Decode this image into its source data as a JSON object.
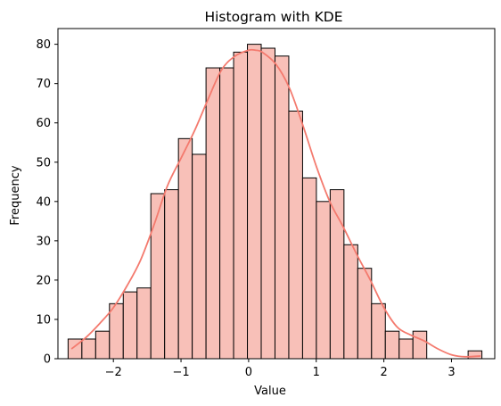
{
  "chart_data": {
    "type": "bar",
    "title": "Histogram with KDE",
    "xlabel": "Value",
    "ylabel": "Frequency",
    "xlim": [
      -2.82,
      3.64
    ],
    "ylim": [
      0,
      84
    ],
    "x_ticks": [
      -2,
      -1,
      0,
      1,
      2,
      3
    ],
    "y_ticks": [
      0,
      10,
      20,
      30,
      40,
      50,
      60,
      70,
      80
    ],
    "grid": false,
    "bin_start": -2.67,
    "bin_width": 0.204,
    "values": [
      5,
      5,
      7,
      14,
      17,
      18,
      42,
      43,
      56,
      52,
      74,
      74,
      78,
      80,
      79,
      77,
      63,
      46,
      40,
      43,
      29,
      23,
      14,
      7,
      5,
      7,
      0,
      0,
      0,
      2
    ],
    "bar_fill": "#f8c0b8",
    "bar_edge": "#000000",
    "kde_color": "#f47a6e",
    "kde": {
      "x": [
        -2.62,
        -2.4,
        -2.2,
        -2.0,
        -1.8,
        -1.6,
        -1.4,
        -1.2,
        -1.0,
        -0.8,
        -0.6,
        -0.4,
        -0.2,
        0.0,
        0.1,
        0.2,
        0.4,
        0.6,
        0.8,
        1.0,
        1.2,
        1.4,
        1.6,
        1.8,
        2.0,
        2.2,
        2.4,
        2.6,
        2.8,
        3.0,
        3.2,
        3.43
      ],
      "y": [
        2.5,
        5.5,
        9,
        13,
        18.5,
        25,
        34,
        44,
        51,
        58,
        66,
        73.5,
        77,
        78.5,
        78.5,
        78,
        75,
        69,
        59.5,
        49,
        40,
        33.5,
        26.5,
        20,
        13,
        8,
        6,
        4.5,
        2.5,
        1,
        0.5,
        0.7
      ]
    }
  }
}
